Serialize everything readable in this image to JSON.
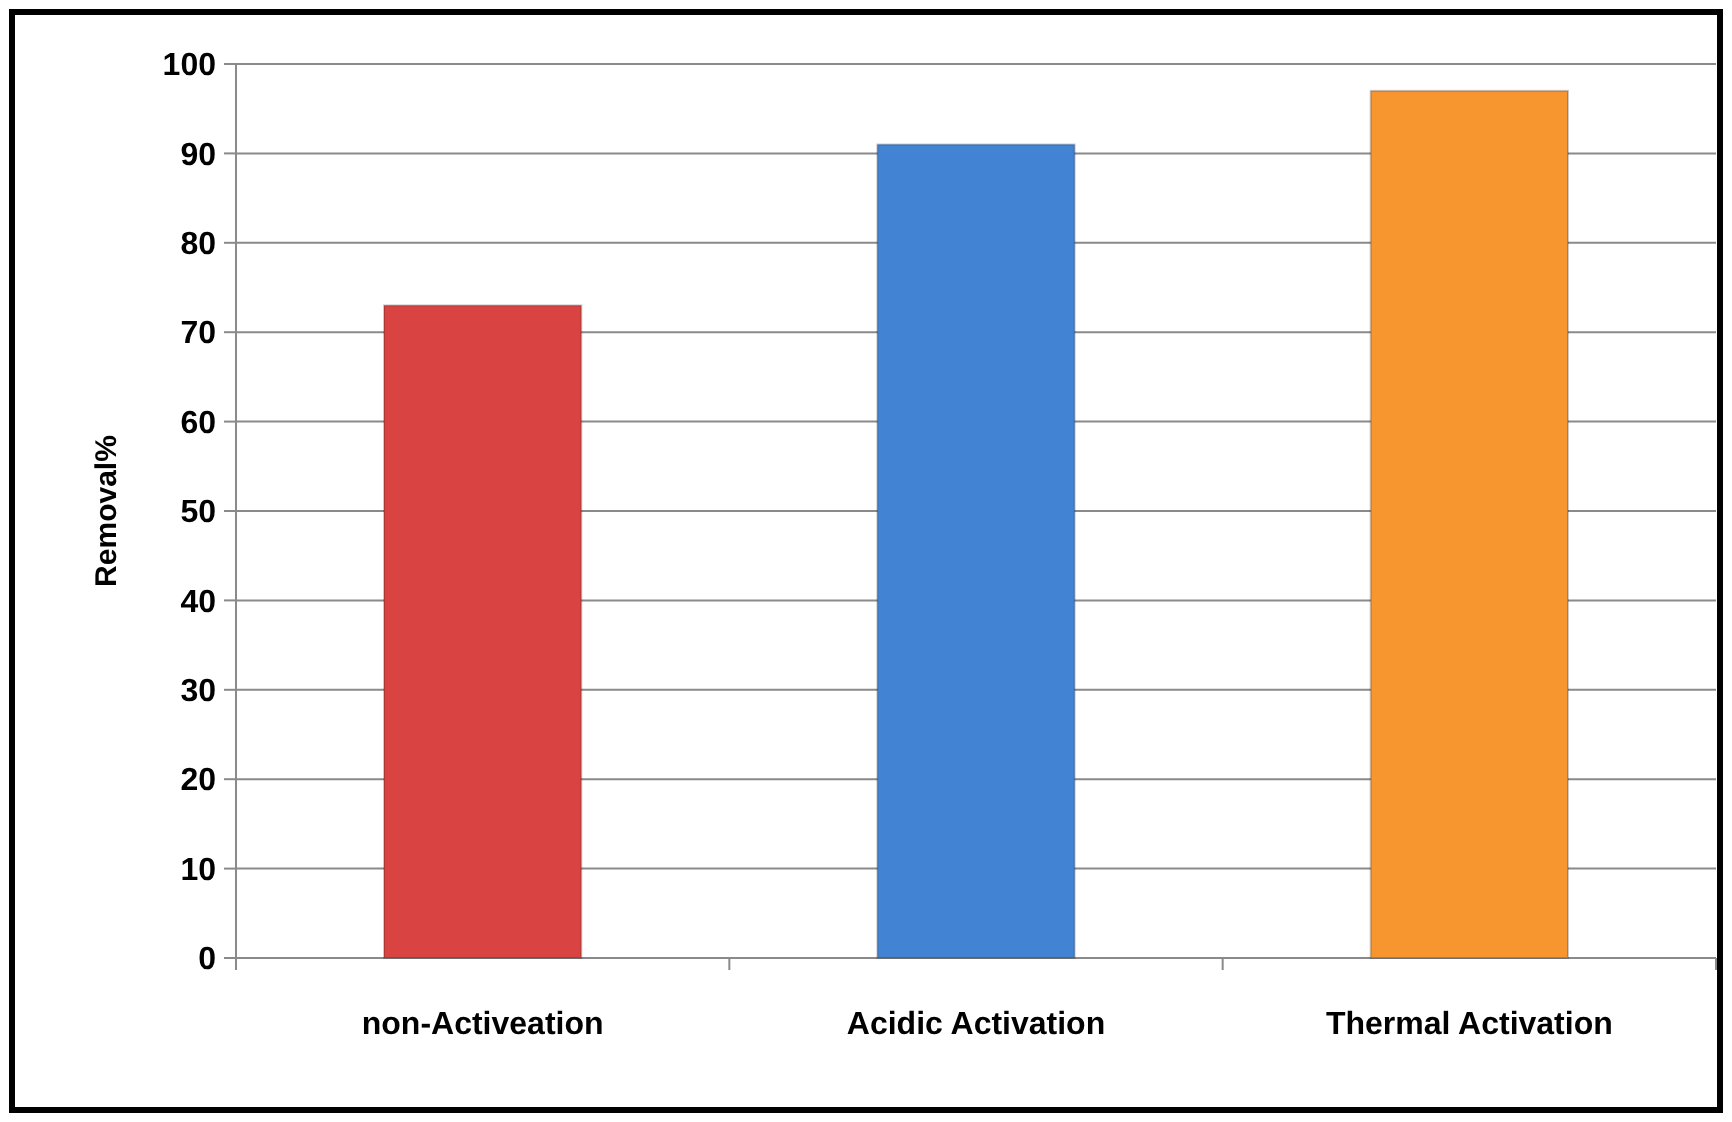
{
  "chart_data": {
    "type": "bar",
    "ylabel": "Removal%",
    "categories": [
      "non-Activeation",
      "Acidic Activation",
      "Thermal Activation"
    ],
    "values": [
      73,
      91,
      97
    ],
    "colors": [
      "#d94341",
      "#4383d3",
      "#f7962e"
    ],
    "ylim": [
      0,
      100
    ],
    "yticks": [
      0,
      10,
      20,
      30,
      40,
      50,
      60,
      70,
      80,
      90,
      100
    ],
    "grid": "y"
  }
}
